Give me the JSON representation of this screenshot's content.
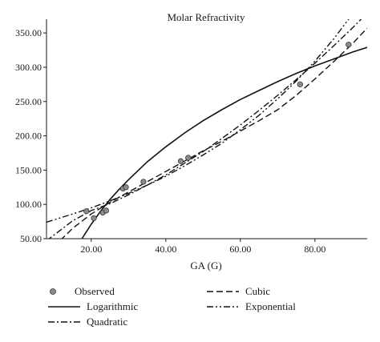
{
  "chart_data": {
    "type": "line",
    "title": "Molar Refractivity",
    "xlabel": "GA (G)",
    "ylabel": "",
    "xlim": [
      8,
      94
    ],
    "ylim": [
      50,
      370
    ],
    "x_ticks": [
      "20.00",
      "40.00",
      "60.00",
      "80.00"
    ],
    "x_tick_values": [
      20,
      40,
      60,
      80
    ],
    "y_ticks": [
      "50.00",
      "100.00",
      "150.00",
      "200.00",
      "250.00",
      "300.00",
      "350.00"
    ],
    "y_tick_values": [
      50,
      100,
      150,
      200,
      250,
      300,
      350
    ],
    "grid": false,
    "legend_position": "bottom",
    "series": [
      {
        "name": "Observed",
        "style": "markers",
        "x": [
          18.7,
          20.7,
          23.1,
          24.0,
          28.5,
          29.3,
          34.0,
          44.0,
          46.0,
          76.0,
          89.0
        ],
        "y": [
          90,
          80,
          88,
          91,
          123,
          125,
          133,
          163,
          168,
          275,
          333
        ]
      },
      {
        "name": "Logarithmic",
        "style": "solid",
        "x": [
          17.5,
          20,
          22.5,
          25,
          27.5,
          30,
          35,
          40,
          45,
          50,
          55,
          60,
          65,
          70,
          75,
          80,
          85,
          90,
          94
        ],
        "y": [
          50,
          71,
          90,
          107,
          122,
          136,
          162,
          184,
          204,
          222,
          238,
          253,
          266,
          279,
          291,
          302,
          312,
          322,
          329
        ]
      },
      {
        "name": "Quadratic",
        "style": "dash-dot",
        "x": [
          8,
          15,
          20,
          25,
          30,
          35,
          40,
          45,
          50,
          55,
          60,
          65,
          70,
          75,
          80,
          85,
          90,
          94
        ],
        "y": [
          47,
          76,
          91,
          101,
          114,
          128,
          143,
          160,
          177,
          196,
          216,
          237,
          259,
          282,
          306,
          331,
          357,
          379
        ]
      },
      {
        "name": "Cubic",
        "style": "dashed",
        "x": [
          8,
          15,
          20,
          25,
          30,
          35,
          40,
          45,
          50,
          55,
          60,
          65,
          70,
          75,
          80,
          85,
          90,
          94
        ],
        "y": [
          28,
          65,
          86,
          103,
          118,
          133,
          148,
          163,
          178,
          192,
          207,
          222,
          238,
          259,
          283,
          308,
          334,
          357
        ]
      },
      {
        "name": "Exponential",
        "style": "dash-dot-dot",
        "x": [
          8,
          15,
          20,
          25,
          30,
          35,
          40,
          45,
          50,
          55,
          60,
          65,
          70,
          75,
          80,
          85,
          90,
          94
        ],
        "y": [
          74,
          86,
          95,
          105,
          116,
          128,
          141,
          156,
          172,
          189,
          209,
          230,
          254,
          280,
          309,
          341,
          377,
          408
        ]
      }
    ]
  }
}
